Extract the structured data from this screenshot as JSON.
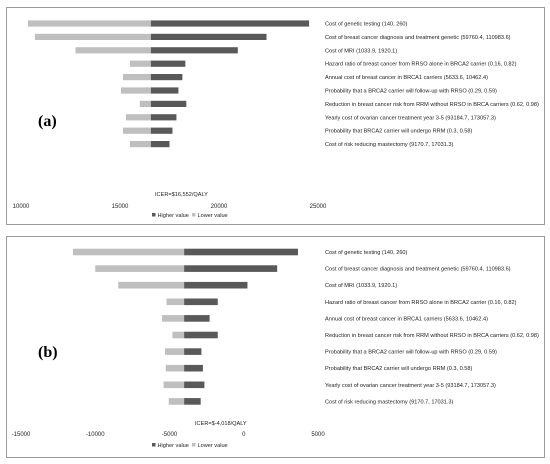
{
  "chart_data": [
    {
      "type": "bar",
      "subtype": "tornado",
      "panel_label": "(a)",
      "base_value": 16552,
      "icer_label": "ICER=$16,552/QALY",
      "xlim": [
        10000,
        25000
      ],
      "xticks": [
        10000,
        15000,
        20000,
        25000
      ],
      "legend": [
        "Higher value",
        "Lower value"
      ],
      "legend_position": "bottom",
      "categories": [
        "Cost of genetic testing (140, 260)",
        "Cost of breast cancer diagnosis and treatment genetic (59760.4, 110983.6)",
        "Cost of MRI (1033.9, 1920.1)",
        "Hazard ratio of breast cancer from RRSO alone in BRCA2 carrier (0.16, 0.82)",
        "Annual cost of breast cancer in BRCA1 carriers (5633.6, 10462.4)",
        "Probability that a BRCA2 carrier will follow-up with RRSO (0.29, 0.59)",
        "Reduction in breast cancer risk from RRM without RRSO in BRCA carriers (0.62, 0.98)",
        "Yearly cost of ovarian cancer treatment year 3-5 (93184.7, 173057.3)",
        "Probability that BRCA2 carrier will undergo RRM (0.3, 0.58)",
        "Cost of risk reducing mastectomy (9170.7, 17031.3)"
      ],
      "series": [
        {
          "name": "Higher value",
          "values": [
            24550,
            22400,
            20950,
            18300,
            18150,
            17950,
            18350,
            17850,
            17650,
            17500
          ]
        },
        {
          "name": "Lower value",
          "values": [
            10350,
            10700,
            12750,
            15500,
            15150,
            15050,
            16000,
            15300,
            15150,
            15500
          ]
        }
      ]
    },
    {
      "type": "bar",
      "subtype": "tornado",
      "panel_label": "(b)",
      "base_value": -4018,
      "icer_label": "ICER=$-4,018/QALY",
      "xlim": [
        -15000,
        5000
      ],
      "xticks": [
        -15000,
        -10000,
        -5000,
        0,
        5000
      ],
      "legend": [
        "Higher value",
        "Lower value"
      ],
      "legend_position": "bottom",
      "categories": [
        "Cost of genetic testing (140, 260)",
        "Cost of breast cancer diagnosis and treatment genetic (59760.4, 110983.6)",
        "Cost of MRI (1033.9, 1920.1)",
        "Hazard ratio of breast cancer from RRSO alone in BRCA2 carrier (0.16, 0.82)",
        "Annual cost of breast cancer in BRCA1 carriers (5633.6, 10462.4)",
        "Reduction in breast cancer risk from RRM without RRSO in BRCA carriers (0.62, 0.98)",
        "Probability that a BRCA2 carrier will follow-up with RRSO (0.29, 0.59)",
        "Probability that BRCA2 carrier will undergo RRM (0.3, 0.58)",
        "Yearly cost of ovarian cancer treatment year 3-5 (93184.7, 173057.3)",
        "Cost of risk reducing mastectomy (9170.7, 17031.3)"
      ],
      "series": [
        {
          "name": "Higher value",
          "values": [
            3650,
            2250,
            250,
            -1750,
            -2300,
            -1750,
            -2850,
            -2750,
            -2650,
            -2900
          ]
        },
        {
          "name": "Lower value",
          "values": [
            -11500,
            -10000,
            -8450,
            -5200,
            -5500,
            -4800,
            -5300,
            -5250,
            -5400,
            -5050
          ]
        }
      ]
    }
  ]
}
